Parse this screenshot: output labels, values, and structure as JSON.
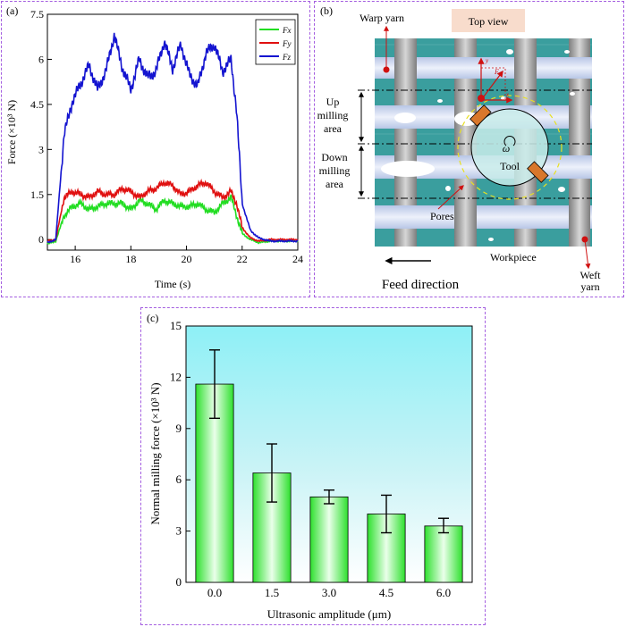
{
  "panels": {
    "a_label": "(a)",
    "b_label": "(b)",
    "c_label": "(c)"
  },
  "chart_data": [
    {
      "panel": "a",
      "type": "line",
      "xlabel": "Time (s)",
      "ylabel": "Force (×10³ N)",
      "xlim": [
        15,
        24
      ],
      "ylim": [
        -0.35,
        7.5
      ],
      "xticks": [
        "16",
        "18",
        "20",
        "22",
        "24"
      ],
      "yticks": [
        "0",
        "1.5",
        "3",
        "4.5",
        "6",
        "7.5"
      ],
      "legend_position": "top-right",
      "series": [
        {
          "name": "Fx",
          "color": "#22dd22",
          "x": [
            15.0,
            15.3,
            15.6,
            15.9,
            16.2,
            16.5,
            16.8,
            17.1,
            17.4,
            17.7,
            18.0,
            18.3,
            18.6,
            18.9,
            19.2,
            19.5,
            19.8,
            20.1,
            20.4,
            20.7,
            21.0,
            21.3,
            21.6,
            21.8,
            22.0,
            22.3,
            22.6,
            23.0,
            23.5,
            24.0
          ],
          "y": [
            -0.15,
            -0.05,
            0.8,
            1.1,
            1.2,
            1.0,
            1.1,
            1.2,
            1.2,
            1.2,
            1.0,
            1.3,
            1.2,
            1.0,
            1.3,
            1.2,
            1.1,
            1.1,
            1.2,
            1.0,
            0.9,
            1.2,
            1.4,
            0.8,
            0.2,
            0.0,
            -0.1,
            -0.05,
            -0.05,
            -0.05
          ]
        },
        {
          "name": "Fy",
          "color": "#e01010",
          "x": [
            15.0,
            15.3,
            15.6,
            15.9,
            16.2,
            16.5,
            16.8,
            17.1,
            17.4,
            17.7,
            18.0,
            18.3,
            18.6,
            18.9,
            19.2,
            19.5,
            19.8,
            20.1,
            20.4,
            20.7,
            21.0,
            21.3,
            21.6,
            21.8,
            22.0,
            22.3,
            22.6,
            23.0,
            23.5,
            24.0
          ],
          "y": [
            -0.05,
            0.0,
            1.4,
            1.6,
            1.5,
            1.4,
            1.6,
            1.5,
            1.5,
            1.7,
            1.6,
            1.4,
            1.6,
            1.7,
            1.9,
            1.8,
            1.5,
            1.6,
            1.8,
            1.9,
            1.6,
            1.4,
            1.6,
            1.2,
            0.4,
            0.05,
            -0.05,
            0.0,
            0.0,
            0.0
          ]
        },
        {
          "name": "Fz",
          "color": "#1414d0",
          "x": [
            15.0,
            15.3,
            15.6,
            15.9,
            16.2,
            16.5,
            16.8,
            17.1,
            17.4,
            17.7,
            18.0,
            18.3,
            18.6,
            18.9,
            19.2,
            19.5,
            19.8,
            20.1,
            20.4,
            20.7,
            21.0,
            21.3,
            21.6,
            21.8,
            22.0,
            22.3,
            22.6,
            23.0,
            23.5,
            24.0
          ],
          "y": [
            -0.1,
            0.0,
            3.5,
            4.6,
            5.2,
            5.8,
            5.0,
            5.6,
            6.8,
            5.7,
            5.0,
            6.0,
            5.4,
            5.6,
            6.6,
            5.7,
            6.5,
            5.5,
            5.1,
            6.2,
            6.5,
            5.6,
            6.0,
            4.3,
            1.2,
            0.3,
            0.05,
            -0.05,
            -0.05,
            -0.05
          ]
        }
      ]
    },
    {
      "panel": "c",
      "type": "bar",
      "xlabel": "Ultrasonic amplitude (μm)",
      "ylabel": "Normal milling force (×10³ N)",
      "categories": [
        "0.0",
        "1.5",
        "3.0",
        "4.5",
        "6.0"
      ],
      "values": [
        11.6,
        6.4,
        5.0,
        4.0,
        3.3
      ],
      "error_low": [
        9.6,
        4.7,
        4.6,
        2.9,
        2.9
      ],
      "error_high": [
        13.6,
        8.1,
        5.4,
        5.1,
        3.75
      ],
      "ylim": [
        0,
        15
      ],
      "yticks": [
        "0",
        "3",
        "6",
        "9",
        "12",
        "15"
      ],
      "bar_color": "#2ee02e"
    }
  ],
  "diagram": {
    "title": "Top view",
    "warp_yarn": "Warp yarn",
    "weft_yarn_1": "Weft",
    "weft_yarn_2": "yarn",
    "up_milling_1": "Up",
    "up_milling_2": "milling",
    "up_milling_3": "area",
    "down_milling_1": "Down",
    "down_milling_2": "milling",
    "down_milling_3": "area",
    "pores": "Pores",
    "tool": "Tool",
    "omega": "ω",
    "workpiece": "Workpiece",
    "feed_direction": "Feed direction",
    "force_label": "F",
    "axis_x": "x",
    "axis_y": "y",
    "colors": {
      "matrix": "#3a9e9e",
      "weft": "#cfd8ef",
      "warp": "#9a9a9a",
      "tool": "#c9ecea",
      "cutter": "#d9772b"
    }
  }
}
